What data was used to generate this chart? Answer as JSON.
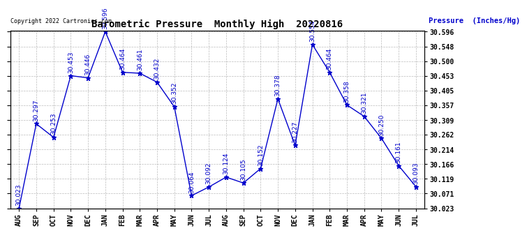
{
  "title": "Barometric Pressure  Monthly High  20220816",
  "ylabel": "Pressure  (Inches/Hg)",
  "copyright": "Copyright 2022 Cartronics.com",
  "months": [
    "AUG",
    "SEP",
    "OCT",
    "NOV",
    "DEC",
    "JAN",
    "FEB",
    "MAR",
    "APR",
    "MAY",
    "JUN",
    "JUL",
    "AUG",
    "SEP",
    "OCT",
    "NOV",
    "DEC",
    "JAN",
    "FEB",
    "MAR",
    "APR",
    "MAY",
    "JUN",
    "JUL"
  ],
  "values": [
    30.023,
    30.297,
    30.253,
    30.453,
    30.446,
    30.596,
    30.464,
    30.461,
    30.432,
    30.352,
    30.064,
    30.092,
    30.124,
    30.105,
    30.152,
    30.378,
    30.227,
    30.554,
    30.464,
    30.358,
    30.321,
    30.25,
    30.161,
    30.093
  ],
  "ylim_min": 30.023,
  "ylim_max": 30.596,
  "yticks": [
    30.023,
    30.071,
    30.119,
    30.166,
    30.214,
    30.262,
    30.309,
    30.357,
    30.405,
    30.453,
    30.5,
    30.548,
    30.596
  ],
  "line_color": "#0000cc",
  "marker": "*",
  "marker_color": "#0000cc",
  "title_color": "#000000",
  "label_color": "#0000cc",
  "background_color": "#ffffff",
  "grid_color": "#aaaaaa",
  "annotation_fontsize": 6.5,
  "tick_fontsize": 7,
  "title_fontsize": 10
}
